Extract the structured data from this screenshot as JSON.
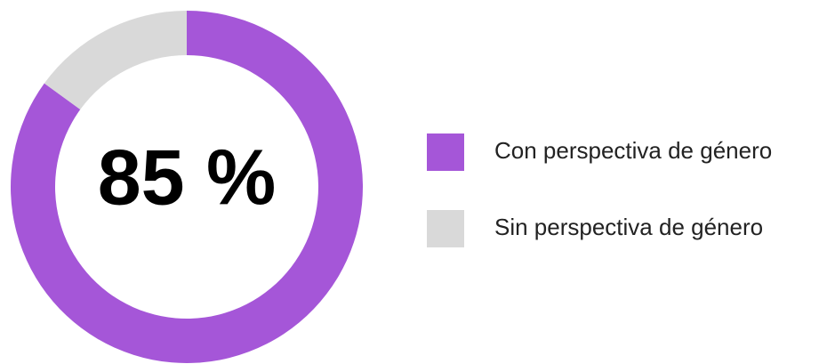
{
  "chart_data": {
    "type": "donut",
    "categories": [
      "Con perspectiva de género",
      "Sin perspectiva de género"
    ],
    "values": [
      85,
      15
    ],
    "colors": [
      "#a556d8",
      "#d9d9d9"
    ],
    "center_label": "85 %",
    "legend": "right"
  }
}
